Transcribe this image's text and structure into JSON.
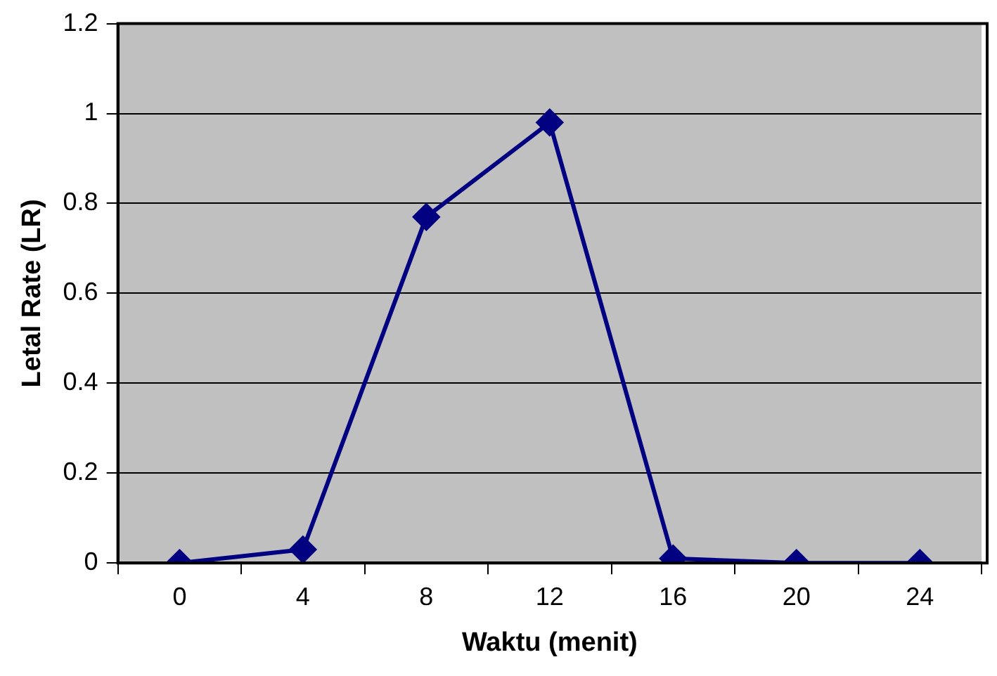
{
  "chart_data": {
    "type": "line",
    "xlabel": "Waktu (menit)",
    "ylabel": "Letal Rate (LR)",
    "categories": [
      "0",
      "4",
      "8",
      "12",
      "16",
      "20",
      "24"
    ],
    "series": [
      {
        "color": "#000080",
        "values": [
          0,
          0.03,
          0.77,
          0.98,
          0.01,
          0,
          0
        ]
      }
    ],
    "ylim": [
      0,
      1.2
    ],
    "yticks": [
      0,
      0.2,
      0.4,
      0.6,
      0.8,
      1,
      1.2
    ],
    "grid": "y",
    "legend": false,
    "marker": "diamond",
    "line_style": "solid"
  }
}
